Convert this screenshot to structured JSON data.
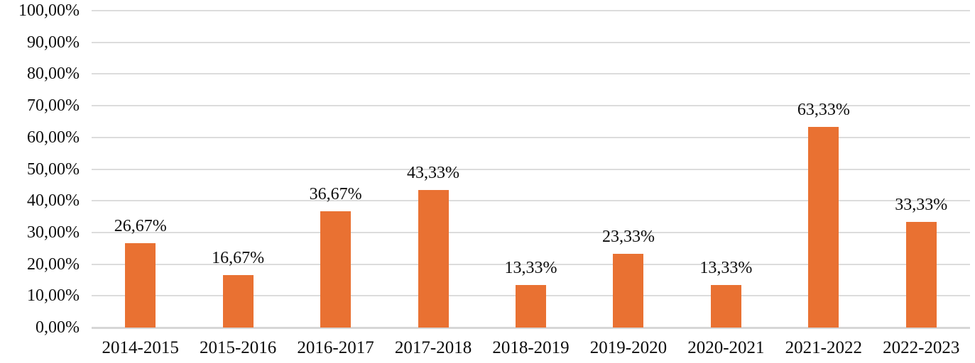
{
  "chart_data": {
    "type": "bar",
    "title": "",
    "xlabel": "",
    "ylabel": "",
    "categories": [
      "2014-2015",
      "2015-2016",
      "2016-2017",
      "2017-2018",
      "2018-2019",
      "2019-2020",
      "2020-2021",
      "2021-2022",
      "2022-2023"
    ],
    "values": [
      26.67,
      16.67,
      36.67,
      43.33,
      13.33,
      23.33,
      13.33,
      63.33,
      33.33
    ],
    "value_labels": [
      "26,67%",
      "16,67%",
      "36,67%",
      "43,33%",
      "13,33%",
      "23,33%",
      "13,33%",
      "63,33%",
      "33,33%"
    ],
    "ylim": [
      0,
      100
    ],
    "ytick_step": 10,
    "ytick_labels": [
      "0,00%",
      "10,00%",
      "20,00%",
      "30,00%",
      "40,00%",
      "50,00%",
      "60,00%",
      "70,00%",
      "80,00%",
      "90,00%",
      "100,00%"
    ],
    "grid": true,
    "legend_position": "none",
    "bar_color": "#e97132",
    "gridline_color": "#dcdcdc",
    "axis_line_color": "#d6d6d6",
    "text_color": "#0d0d0d"
  }
}
